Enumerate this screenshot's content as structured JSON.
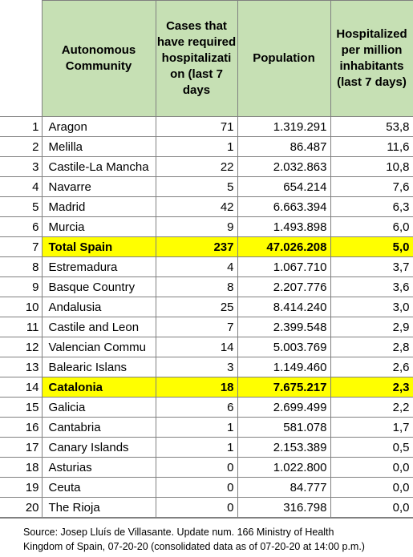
{
  "table": {
    "headers": {
      "community": "Autonomous Community",
      "cases": "Cases that have required hospitalizati on (last 7 days",
      "population": "Population",
      "per_million": "Hospitalized per million inhabitants (last 7 days)"
    },
    "rows": [
      {
        "num": "1",
        "name": "Aragon",
        "cases": "71",
        "population": "1.319.291",
        "per_million": "53,8"
      },
      {
        "num": "2",
        "name": "Melilla",
        "cases": "1",
        "population": "86.487",
        "per_million": "11,6"
      },
      {
        "num": "3",
        "name": "Castile-La Mancha",
        "cases": "22",
        "population": "2.032.863",
        "per_million": "10,8"
      },
      {
        "num": "4",
        "name": "Navarre",
        "cases": "5",
        "population": "654.214",
        "per_million": "7,6"
      },
      {
        "num": "5",
        "name": "Madrid",
        "cases": "42",
        "population": "6.663.394",
        "per_million": "6,3"
      },
      {
        "num": "6",
        "name": "Murcia",
        "cases": "9",
        "population": "1.493.898",
        "per_million": "6,0"
      },
      {
        "num": "7",
        "name": "Total Spain",
        "cases": "237",
        "population": "47.026.208",
        "per_million": "5,0",
        "highlight": true
      },
      {
        "num": "8",
        "name": "Estremadura",
        "cases": "4",
        "population": "1.067.710",
        "per_million": "3,7"
      },
      {
        "num": "9",
        "name": "Basque Country",
        "cases": "8",
        "population": "2.207.776",
        "per_million": "3,6"
      },
      {
        "num": "10",
        "name": "Andalusia",
        "cases": "25",
        "population": "8.414.240",
        "per_million": "3,0"
      },
      {
        "num": "11",
        "name": "Castile and Leon",
        "cases": "7",
        "population": "2.399.548",
        "per_million": "2,9"
      },
      {
        "num": "12",
        "name": "Valencian Commu",
        "cases": "14",
        "population": "5.003.769",
        "per_million": "2,8"
      },
      {
        "num": "13",
        "name": "Balearic Islans",
        "cases": "3",
        "population": "1.149.460",
        "per_million": "2,6"
      },
      {
        "num": "14",
        "name": "Catalonia",
        "cases": "18",
        "population": "7.675.217",
        "per_million": "2,3",
        "highlight": true
      },
      {
        "num": "15",
        "name": "Galicia",
        "cases": "6",
        "population": "2.699.499",
        "per_million": "2,2"
      },
      {
        "num": "16",
        "name": "Cantabria",
        "cases": "1",
        "population": "581.078",
        "per_million": "1,7"
      },
      {
        "num": "17",
        "name": "Canary Islands",
        "cases": "1",
        "population": "2.153.389",
        "per_million": "0,5"
      },
      {
        "num": "18",
        "name": "Asturias",
        "cases": "0",
        "population": "1.022.800",
        "per_million": "0,0"
      },
      {
        "num": "19",
        "name": "Ceuta",
        "cases": "0",
        "population": "84.777",
        "per_million": "0,0"
      },
      {
        "num": "20",
        "name": "The Rioja",
        "cases": "0",
        "population": "316.798",
        "per_million": "0,0"
      }
    ]
  },
  "source": {
    "line1": "Source: Josep Lluís de Villasante.  Update num. 166  Ministry of Health",
    "line2": "Kingdom of Spain, 07-20-20  (consolidated data as of 07-20-20  at 14:00  p.m.)"
  }
}
